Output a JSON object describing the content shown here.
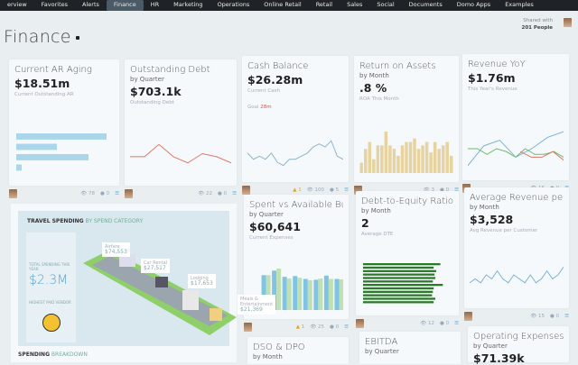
{
  "nav": {
    "items": [
      "erview",
      "Favorites",
      "Alerts",
      "Finance",
      "HR",
      "Marketing",
      "Operations",
      "Online Retail",
      "Retail",
      "Sales",
      "Social",
      "Documents",
      "Domo Apps",
      "Examples"
    ],
    "active": "Finance"
  },
  "page": {
    "title": "Finance",
    "shared_label": "Shared with",
    "shared_count": "201 People"
  },
  "cards": [
    {
      "title": "Current AR Aging",
      "sub": "",
      "value": "$18.51m",
      "caption": "Current Outstanding AR",
      "views": "78",
      "comments": "0",
      "chart": {
        "type": "hbar",
        "color": "#a9d6ea",
        "values": [
          100,
          45,
          80,
          6
        ]
      }
    },
    {
      "title": "Outstanding Debt",
      "sub": "by Quarter",
      "value": "$703.1k",
      "caption": "Outstanding Debt",
      "views": "22",
      "comments": "0",
      "chart": {
        "type": "line",
        "color": "#d9796a",
        "values": [
          5,
          5,
          9,
          5,
          3,
          6,
          5,
          3
        ]
      }
    },
    {
      "title": "Cash Balance",
      "sub": "",
      "value": "$26.28m",
      "caption": "Current Cash",
      "goal_label": "Goal",
      "goal_value": "28m",
      "alerts": "1",
      "views": "100",
      "comments": "5",
      "chart": {
        "type": "line",
        "color": "#8fb3cc",
        "values": [
          5,
          3,
          4,
          3,
          5,
          2,
          1,
          3,
          3,
          4,
          5,
          7,
          8,
          7,
          9,
          4,
          3
        ]
      }
    },
    {
      "title": "Return on Assets",
      "sub": "by Month",
      "value": ".8 %",
      "caption": "ROA This Month",
      "views": "3",
      "comments": "0",
      "chart": {
        "type": "bar",
        "color": "#e6d3a0",
        "values": [
          3,
          7,
          9,
          4,
          8,
          8,
          12,
          8,
          7,
          5,
          8,
          9,
          9,
          10,
          7,
          8,
          9,
          6,
          9,
          7,
          8,
          9,
          5
        ]
      }
    },
    {
      "title": "Revenue YoY",
      "sub": "",
      "value": "$1.76m",
      "caption": "This Year's Revenue",
      "views": "16",
      "comments": "0",
      "chart": {
        "type": "multiline",
        "series": [
          {
            "color": "#7ab2d8",
            "values": [
              1,
              8,
              10,
              4,
              7,
              11,
              13
            ]
          },
          {
            "color": "#6cbc6c",
            "values": [
              7,
              7,
              5,
              7,
              6,
              4,
              7,
              5,
              5,
              6,
              4
            ]
          },
          {
            "color": "#d9796a",
            "values": [
              6,
              4,
              4,
              6,
              3
            ]
          }
        ]
      }
    },
    {
      "title": "Spent vs Available Bu...",
      "sub": "by Quarter",
      "value": "$60,641",
      "caption": "Current Expenses",
      "alerts": "1",
      "views": "25",
      "comments": "0",
      "chart": {
        "type": "groupbar",
        "colors": [
          "#80c4e4",
          "#bfe0b4"
        ],
        "values": [
          [
            1,
            0.7
          ],
          [
            8.4,
            8.4
          ],
          [
            9.5,
            10
          ],
          [
            8,
            7.6
          ],
          [
            8.2,
            7.8
          ],
          [
            7.5,
            7.2
          ],
          [
            7.3,
            7.6
          ],
          [
            8.3,
            7.5
          ],
          [
            7.5,
            7.4
          ]
        ]
      }
    },
    {
      "title": "Debt-to-Equity Ratio",
      "sub": "by Month",
      "value": "2",
      "caption": "Average DTE",
      "views": "12",
      "comments": "0",
      "chart": {
        "type": "hbar",
        "color": "#2a7a2a",
        "values": [
          93,
          85,
          88,
          86,
          87,
          84,
          96,
          85,
          84,
          83,
          87,
          85
        ]
      }
    },
    {
      "title": "Average Revenue per ...",
      "sub": "by Month",
      "value": "$3,528",
      "caption": "Avg Revenue per Customer",
      "views": "15",
      "comments": "0",
      "chart": {
        "type": "line",
        "color": "#7ab2d8",
        "values": [
          3,
          4,
          3,
          5,
          4,
          6,
          4,
          3,
          5,
          4,
          3,
          5,
          3,
          4,
          6,
          4,
          5,
          7
        ]
      }
    },
    {
      "title": "DSO & DPO",
      "sub": "by Month",
      "value": ""
    },
    {
      "title": "EBITDA",
      "sub": "by Quarter",
      "value": ""
    },
    {
      "title": "Operating Expenses: ...",
      "sub": "by Quarter",
      "value": "$71.39k"
    }
  ],
  "travel": {
    "title_bold": "TRAVEL SPENDING",
    "title_rest": "BY SPEND CATEGORY",
    "total_label": "TOTAL SPENDING THIS YEAR",
    "total": "$2.3M",
    "vendor_label": "HIGHEST PAID VENDOR",
    "footer_bold": "SPENDING",
    "footer_rest": "BREAKDOWN",
    "tags": [
      {
        "label": "Airfare",
        "value": "$74,553"
      },
      {
        "label": "Car Rental",
        "value": "$27,517"
      },
      {
        "label": "Lodging",
        "value": "$17,653"
      },
      {
        "label": "Meals & Entertainment",
        "value": "$21,369"
      }
    ]
  }
}
